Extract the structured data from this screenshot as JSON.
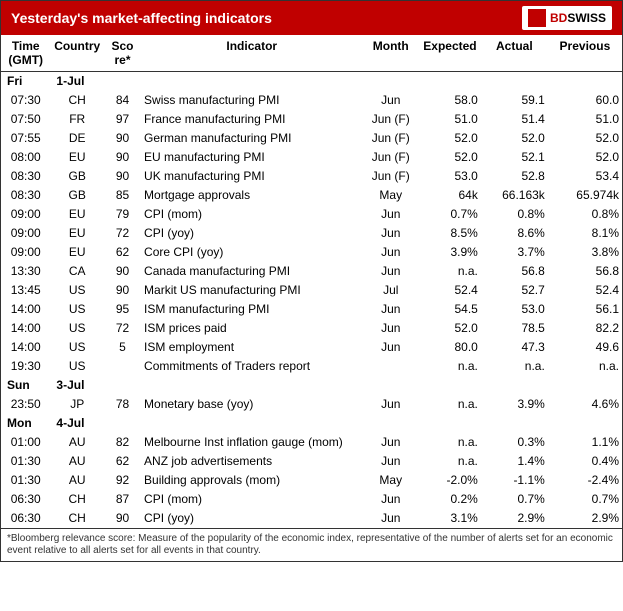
{
  "header": {
    "title": "Yesterday's market-affecting indicators",
    "logo_bd": "BD",
    "logo_swiss": "SWISS"
  },
  "columns": {
    "time": "Time (GMT)",
    "country": "Country",
    "score": "Sco re*",
    "indicator": "Indicator",
    "month": "Month",
    "expected": "Expected",
    "actual": "Actual",
    "previous": "Previous"
  },
  "days": [
    {
      "day": "Fri",
      "date": "1-Jul"
    },
    {
      "day": "Sun",
      "date": "3-Jul"
    },
    {
      "day": "Mon",
      "date": "4-Jul"
    }
  ],
  "rows": [
    {
      "day": 0,
      "time": "07:30",
      "country": "CH",
      "score": "84",
      "indicator": "Swiss manufacturing PMI",
      "month": "Jun",
      "expected": "58.0",
      "actual": "59.1",
      "previous": "60.0"
    },
    {
      "day": 0,
      "time": "07:50",
      "country": "FR",
      "score": "97",
      "indicator": "France manufacturing PMI",
      "month": "Jun (F)",
      "expected": "51.0",
      "actual": "51.4",
      "previous": "51.0"
    },
    {
      "day": 0,
      "time": "07:55",
      "country": "DE",
      "score": "90",
      "indicator": "German manufacturing PMI",
      "month": "Jun (F)",
      "expected": "52.0",
      "actual": "52.0",
      "previous": "52.0"
    },
    {
      "day": 0,
      "time": "08:00",
      "country": "EU",
      "score": "90",
      "indicator": "EU manufacturing PMI",
      "month": "Jun (F)",
      "expected": "52.0",
      "actual": "52.1",
      "previous": "52.0"
    },
    {
      "day": 0,
      "time": "08:30",
      "country": "GB",
      "score": "90",
      "indicator": "UK manufacturing PMI",
      "month": "Jun (F)",
      "expected": "53.0",
      "actual": "52.8",
      "previous": "53.4"
    },
    {
      "day": 0,
      "time": "08:30",
      "country": "GB",
      "score": "85",
      "indicator": "Mortgage approvals",
      "month": "May",
      "expected": "64k",
      "actual": "66.163k",
      "previous": "65.974k"
    },
    {
      "day": 0,
      "time": "09:00",
      "country": "EU",
      "score": "79",
      "indicator": "CPI (mom)",
      "month": "Jun",
      "expected": "0.7%",
      "actual": "0.8%",
      "previous": "0.8%"
    },
    {
      "day": 0,
      "time": "09:00",
      "country": "EU",
      "score": "72",
      "indicator": "CPI (yoy)",
      "month": "Jun",
      "expected": "8.5%",
      "actual": "8.6%",
      "previous": "8.1%"
    },
    {
      "day": 0,
      "time": "09:00",
      "country": "EU",
      "score": "62",
      "indicator": "Core CPI (yoy)",
      "month": "Jun",
      "expected": "3.9%",
      "actual": "3.7%",
      "previous": "3.8%"
    },
    {
      "day": 0,
      "time": "13:30",
      "country": "CA",
      "score": "90",
      "indicator": "Canada manufacturing PMI",
      "month": "Jun",
      "expected": "n.a.",
      "actual": "56.8",
      "previous": "56.8"
    },
    {
      "day": 0,
      "time": "13:45",
      "country": "US",
      "score": "90",
      "indicator": "Markit US manufacturing PMI",
      "month": "Jul",
      "expected": "52.4",
      "actual": "52.7",
      "previous": "52.4"
    },
    {
      "day": 0,
      "time": "14:00",
      "country": "US",
      "score": "95",
      "indicator": "ISM manufacturing PMI",
      "month": "Jun",
      "expected": "54.5",
      "actual": "53.0",
      "previous": "56.1"
    },
    {
      "day": 0,
      "time": "14:00",
      "country": "US",
      "score": "72",
      "indicator": "ISM prices paid",
      "month": "Jun",
      "expected": "52.0",
      "actual": "78.5",
      "previous": "82.2"
    },
    {
      "day": 0,
      "time": "14:00",
      "country": "US",
      "score": "5",
      "indicator": "ISM employment",
      "month": "Jun",
      "expected": "80.0",
      "actual": "47.3",
      "previous": "49.6"
    },
    {
      "day": 0,
      "time": "19:30",
      "country": "US",
      "score": "",
      "indicator": "Commitments of Traders report",
      "month": "",
      "expected": "n.a.",
      "actual": "n.a.",
      "previous": "n.a."
    },
    {
      "day": 1,
      "time": "23:50",
      "country": "JP",
      "score": "78",
      "indicator": "Monetary base (yoy)",
      "month": "Jun",
      "expected": "n.a.",
      "actual": "3.9%",
      "previous": "4.6%"
    },
    {
      "day": 2,
      "time": "01:00",
      "country": "AU",
      "score": "82",
      "indicator": "Melbourne Inst inflation gauge (mom)",
      "month": "Jun",
      "expected": "n.a.",
      "actual": "0.3%",
      "previous": "1.1%"
    },
    {
      "day": 2,
      "time": "01:30",
      "country": "AU",
      "score": "62",
      "indicator": "ANZ job advertisements",
      "month": "Jun",
      "expected": "n.a.",
      "actual": "1.4%",
      "previous": "0.4%"
    },
    {
      "day": 2,
      "time": "01:30",
      "country": "AU",
      "score": "92",
      "indicator": "Building approvals (mom)",
      "month": "May",
      "expected": "-2.0%",
      "actual": "-1.1%",
      "previous": "-2.4%"
    },
    {
      "day": 2,
      "time": "06:30",
      "country": "CH",
      "score": "87",
      "indicator": "CPI (mom)",
      "month": "Jun",
      "expected": "0.2%",
      "actual": "0.7%",
      "previous": "0.7%"
    },
    {
      "day": 2,
      "time": "06:30",
      "country": "CH",
      "score": "90",
      "indicator": "CPI (yoy)",
      "month": "Jun",
      "expected": "3.1%",
      "actual": "2.9%",
      "previous": "2.9%"
    }
  ],
  "footnote": "*Bloomberg relevance score:  Measure of the popularity of the economic index, representative of the number of alerts set for an economic event relative to all alerts set for all events in that country."
}
